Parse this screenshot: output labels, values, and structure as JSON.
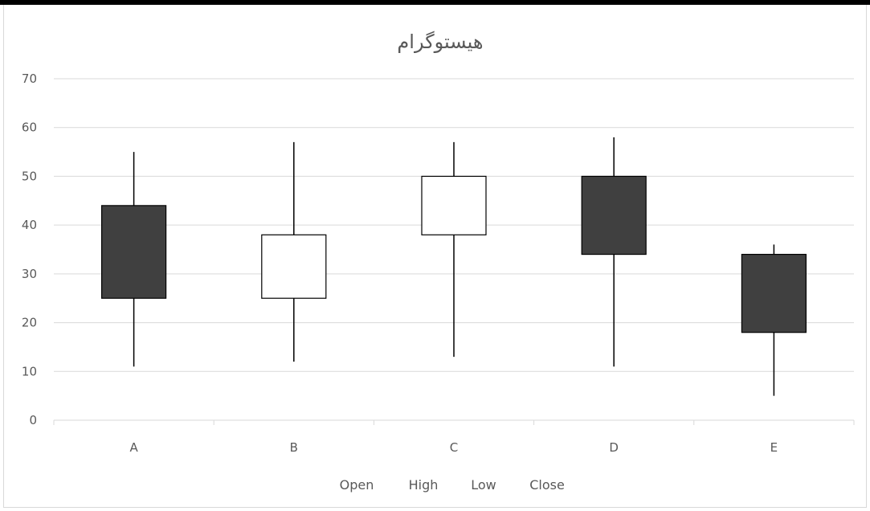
{
  "chart_data": {
    "type": "candlestick",
    "title": "هیستوگرام",
    "xlabel": "",
    "ylabel": "",
    "ylim": [
      0,
      70
    ],
    "yticks": [
      0,
      10,
      20,
      30,
      40,
      50,
      60,
      70
    ],
    "grid": true,
    "legend_position": "bottom",
    "legend": [
      "Open",
      "High",
      "Low",
      "Close"
    ],
    "categories": [
      "A",
      "B",
      "C",
      "D",
      "E"
    ],
    "open": [
      44,
      25,
      38,
      50,
      34
    ],
    "high": [
      55,
      57,
      57,
      58,
      36
    ],
    "low": [
      11,
      12,
      13,
      11,
      5
    ],
    "close": [
      25,
      38,
      50,
      34,
      18
    ],
    "colors": {
      "down": "#404040",
      "up": "#ffffff",
      "line": "#000000",
      "grid": "#d9d9d9",
      "text": "#595959"
    }
  }
}
